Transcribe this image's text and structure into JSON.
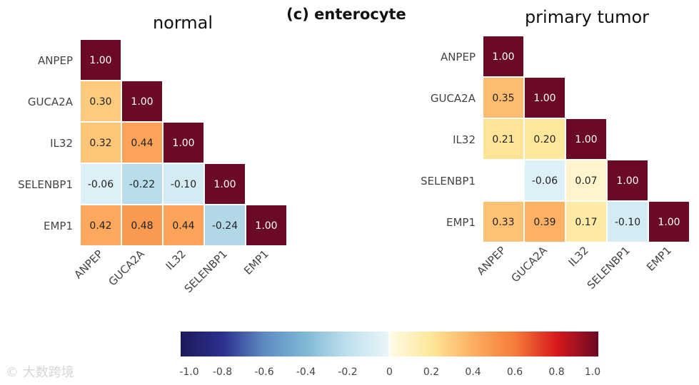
{
  "chart_data": {
    "type": "heatmap",
    "title": "(c) enterocyte",
    "variables": [
      "ANPEP",
      "GUCA2A",
      "IL32",
      "SELENBP1",
      "EMP1"
    ],
    "panels": [
      {
        "title": "normal",
        "matrix": [
          [
            1.0
          ],
          [
            0.3,
            1.0
          ],
          [
            0.32,
            0.44,
            1.0
          ],
          [
            -0.06,
            -0.22,
            -0.1,
            1.0
          ],
          [
            0.42,
            0.48,
            0.44,
            -0.24,
            1.0
          ]
        ]
      },
      {
        "title": "primary tumor",
        "matrix": [
          [
            1.0
          ],
          [
            0.35,
            1.0
          ],
          [
            0.21,
            0.2,
            1.0
          ],
          [
            null,
            -0.06,
            0.07,
            1.0
          ],
          [
            0.33,
            0.39,
            0.17,
            -0.1,
            1.0
          ]
        ]
      }
    ],
    "colorbar": {
      "range": [
        -1.0,
        1.0
      ],
      "ticks": [
        "-1.0",
        "-0.8",
        "-0.6",
        "-0.4",
        "-0.2",
        "0",
        "0.2",
        "0.4",
        "0.6",
        "0.8",
        "1.0"
      ],
      "colormap": [
        "#1c1a5c",
        "#2b2f8e",
        "#5e8bc2",
        "#80b9d6",
        "#bfe0ec",
        "#eaf6fb",
        "#fffbe6",
        "#fee79a",
        "#fdae61",
        "#f57c3a",
        "#d7191c",
        "#6b0a24"
      ]
    }
  },
  "watermark": "大数跨境"
}
